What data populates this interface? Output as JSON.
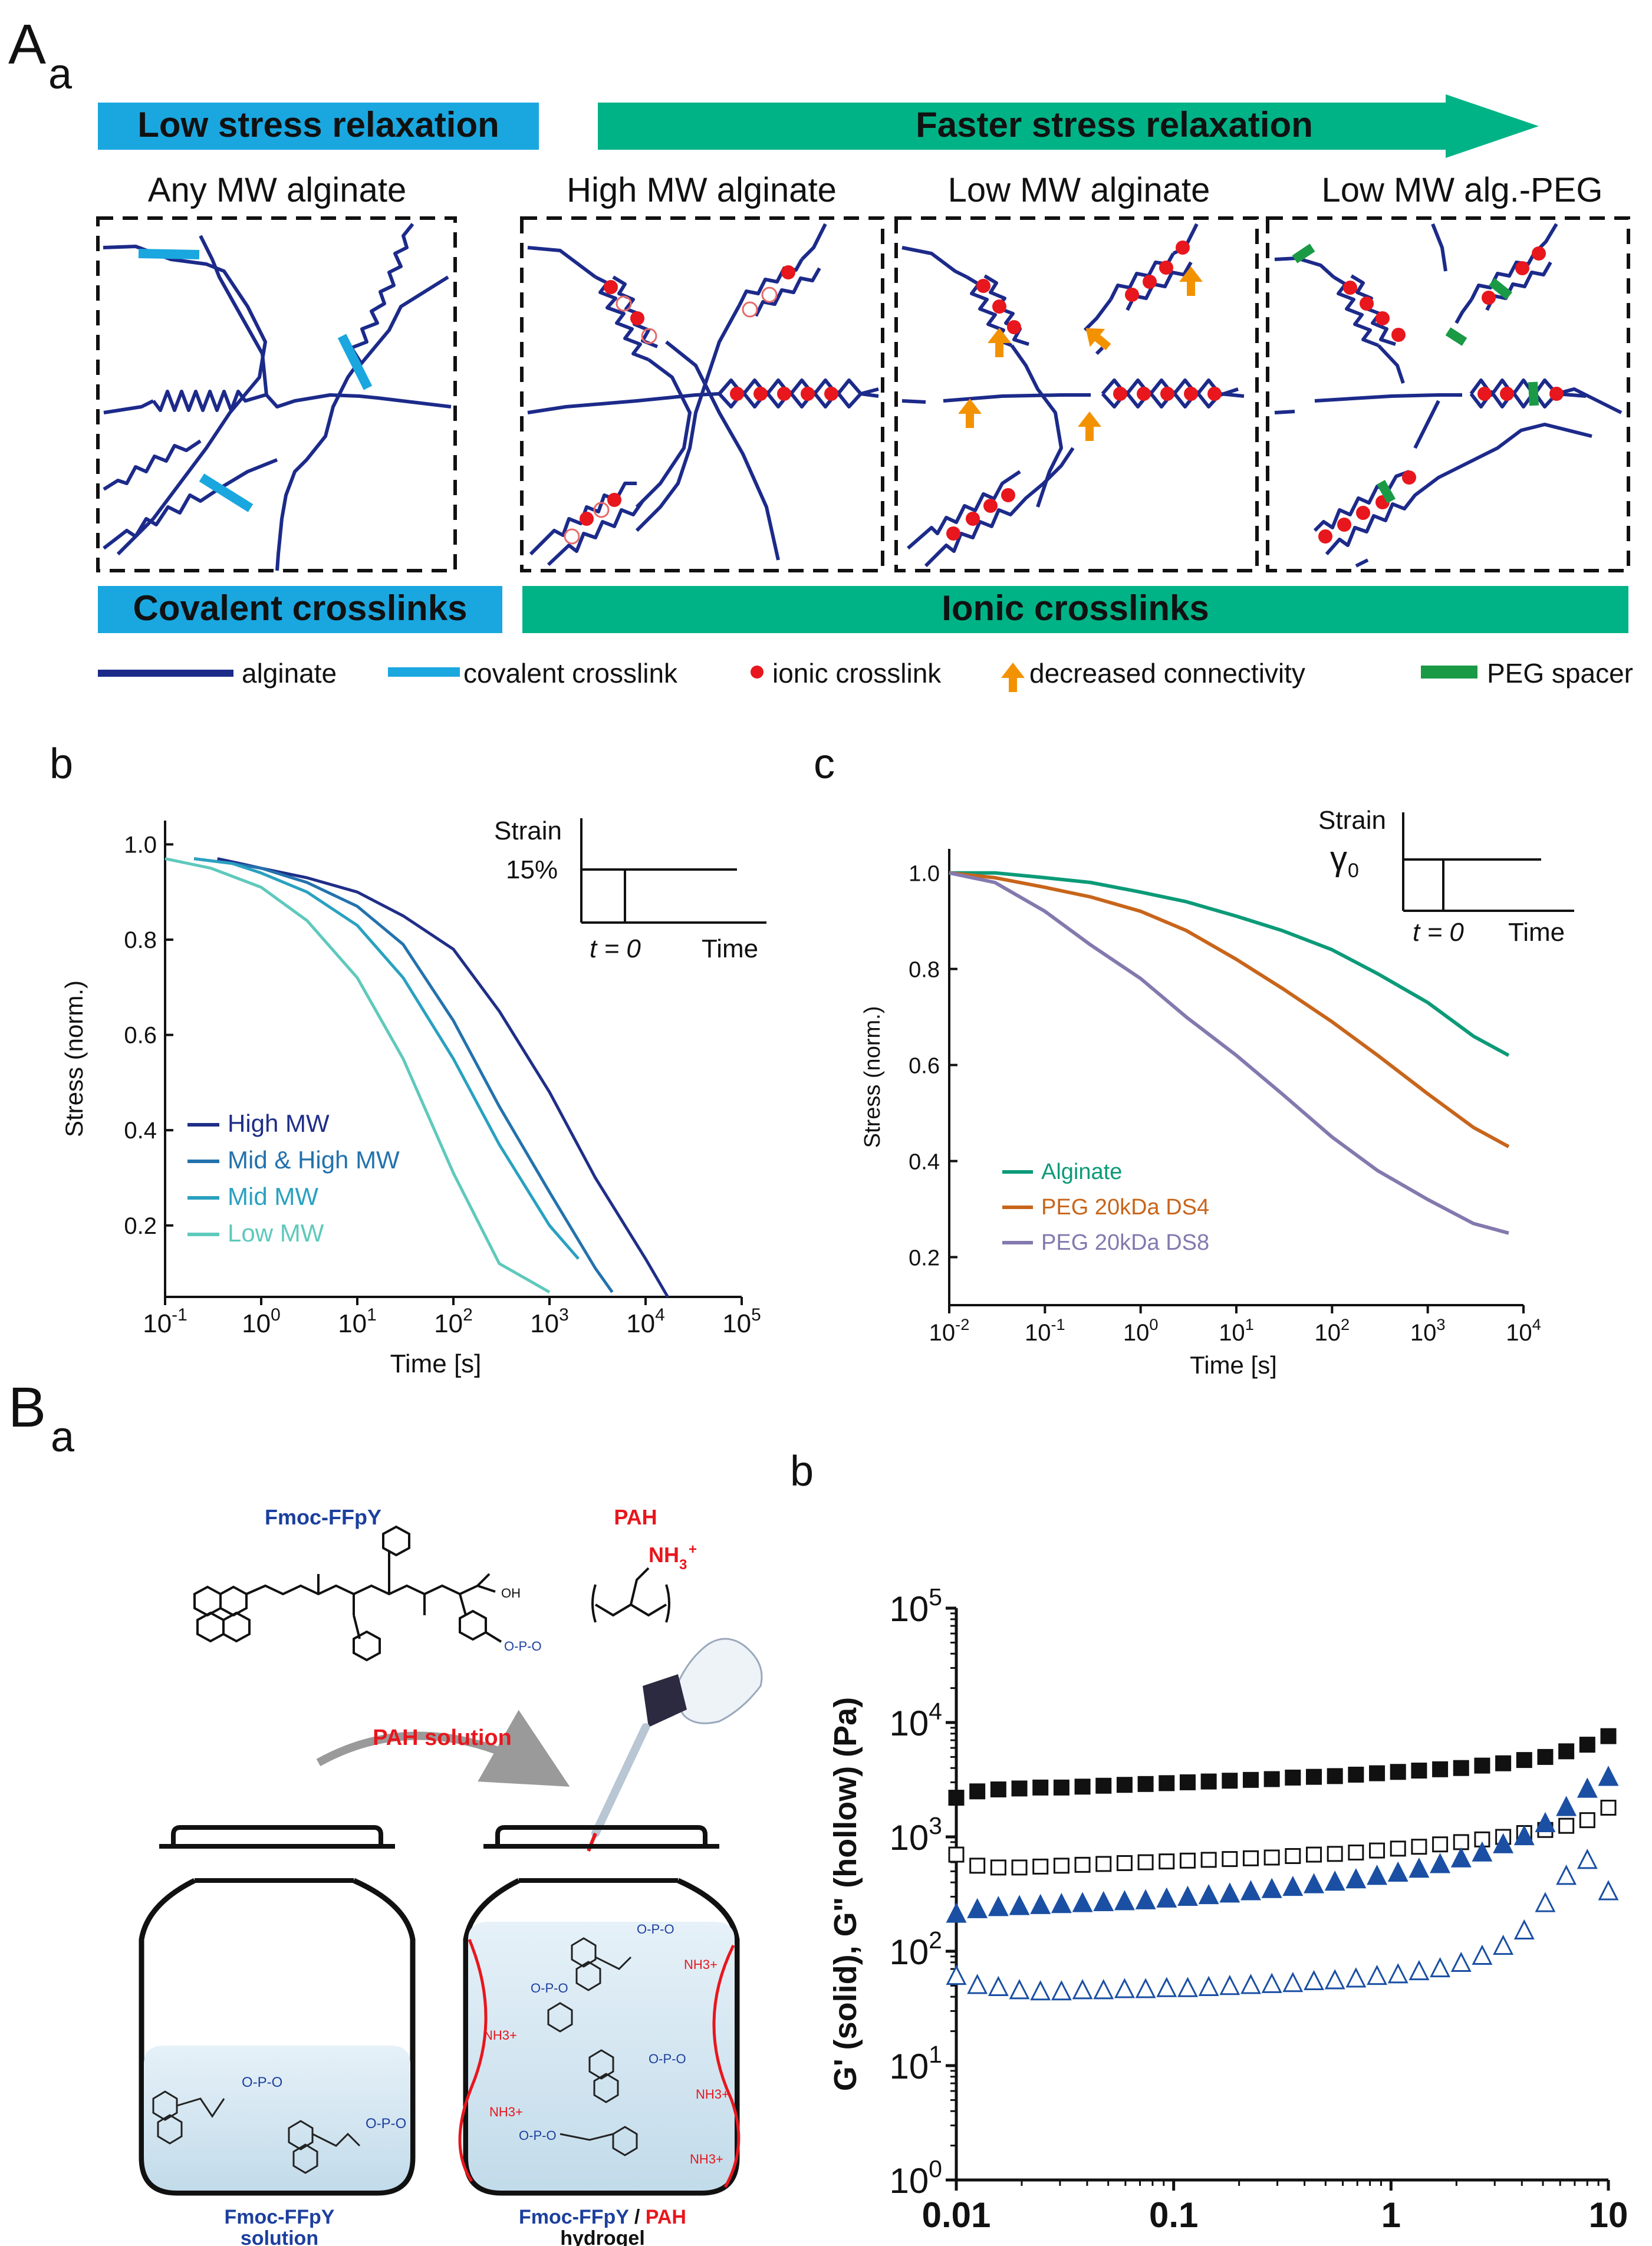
{
  "panelA": {
    "label": "A",
    "sublabel": "a",
    "banner_low": "Low stress relaxation",
    "banner_fast": "Faster stress relaxation",
    "banner_covalent": "Covalent crosslinks",
    "banner_ionic": "Ionic crosslinks",
    "box_titles": [
      "Any MW alginate",
      "High MW alginate",
      "Low MW alginate",
      "Low MW alg.-PEG"
    ],
    "legend": {
      "alginate": "alginate",
      "covalent": "covalent crosslink",
      "ionic": "ionic crosslink",
      "decreased": "decreased connectivity",
      "peg": "PEG spacer"
    },
    "colors": {
      "cyan": "#1aa7e0",
      "green": "#00b386",
      "navy": "#1c2a8a",
      "red": "#e8161d",
      "orange": "#f39200",
      "peg": "#1a9a45"
    }
  },
  "panelAb": {
    "label": "b",
    "inset": {
      "strain": "Strain",
      "value": "15%",
      "t0": "t = 0",
      "time": "Time"
    }
  },
  "panelAc": {
    "label": "c",
    "inset": {
      "strain": "Strain",
      "gamma": "γ",
      "gamma_sub": "0",
      "t0": "t = 0",
      "time": "Time"
    }
  },
  "panelB": {
    "label": "B",
    "sublabel": "a",
    "label_b": "b",
    "molecule1": "Fmoc-FFpY",
    "molecule2": "PAH",
    "amine": "NH",
    "amine_sub": "3",
    "amine_sup": "+",
    "arrow_label": "PAH solution",
    "jar1_line1": "Fmoc-FFpY",
    "jar1_line2": "solution",
    "jar2_part1": "Fmoc-FFpY",
    "jar2_sep": " / ",
    "jar2_part2": "PAH",
    "jar2_line2": "hydrogel"
  },
  "chart_data": [
    {
      "type": "line",
      "id": "stress-relaxation-mw",
      "xlabel": "Time [s]",
      "ylabel": "Stress (norm.)",
      "xscale": "log",
      "xlim": [
        0.1,
        100000
      ],
      "ylim": [
        0.05,
        1.05
      ],
      "xticks": [
        {
          "b": "10",
          "e": "-1"
        },
        {
          "b": "10",
          "e": "0"
        },
        {
          "b": "10",
          "e": "1"
        },
        {
          "b": "10",
          "e": "2"
        },
        {
          "b": "10",
          "e": "3"
        },
        {
          "b": "10",
          "e": "4"
        },
        {
          "b": "10",
          "e": "5"
        }
      ],
      "yticks": [
        "0.2",
        "0.4",
        "0.6",
        "0.8",
        "1.0"
      ],
      "legend_position": "bottom-left",
      "series": [
        {
          "name": "High MW",
          "color": "#1f2e87",
          "x": [
            0.35,
            0.6,
            1,
            3,
            10,
            30,
            100,
            300,
            1000,
            3000,
            10000,
            17000
          ],
          "y": [
            0.97,
            0.96,
            0.95,
            0.93,
            0.9,
            0.85,
            0.78,
            0.65,
            0.48,
            0.3,
            0.13,
            0.05
          ]
        },
        {
          "name": "Mid & High MW",
          "color": "#2372ad",
          "x": [
            0.2,
            0.5,
            1,
            3,
            10,
            30,
            100,
            300,
            1000,
            3000,
            4500
          ],
          "y": [
            0.97,
            0.96,
            0.95,
            0.92,
            0.87,
            0.79,
            0.63,
            0.45,
            0.27,
            0.11,
            0.06
          ]
        },
        {
          "name": "Mid MW",
          "color": "#2aa1c0",
          "x": [
            0.2,
            0.5,
            1,
            3,
            10,
            30,
            100,
            300,
            1000,
            2000
          ],
          "y": [
            0.97,
            0.96,
            0.94,
            0.9,
            0.83,
            0.72,
            0.55,
            0.37,
            0.2,
            0.13
          ]
        },
        {
          "name": "Low MW",
          "color": "#5ec9bc",
          "x": [
            0.1,
            0.3,
            1,
            3,
            10,
            30,
            100,
            300,
            1000
          ],
          "y": [
            0.97,
            0.95,
            0.91,
            0.84,
            0.72,
            0.55,
            0.31,
            0.12,
            0.06
          ]
        }
      ]
    },
    {
      "type": "line",
      "id": "stress-relaxation-peg",
      "xlabel": "Time [s]",
      "ylabel": "Stress (norm.)",
      "xscale": "log",
      "xlim": [
        0.01,
        10000
      ],
      "ylim": [
        0.1,
        1.05
      ],
      "xticks": [
        {
          "b": "10",
          "e": "-2"
        },
        {
          "b": "10",
          "e": "-1"
        },
        {
          "b": "10",
          "e": "0"
        },
        {
          "b": "10",
          "e": "1"
        },
        {
          "b": "10",
          "e": "2"
        },
        {
          "b": "10",
          "e": "3"
        },
        {
          "b": "10",
          "e": "4"
        }
      ],
      "yticks": [
        "0.2",
        "0.4",
        "0.6",
        "0.8",
        "1.0"
      ],
      "legend_position": "bottom-left",
      "series": [
        {
          "name": "Alginate",
          "color": "#0c9a78",
          "x": [
            0.01,
            0.03,
            0.1,
            0.3,
            1,
            3,
            10,
            30,
            100,
            300,
            1000,
            3000,
            7000
          ],
          "y": [
            1.0,
            1.0,
            0.99,
            0.98,
            0.96,
            0.94,
            0.91,
            0.88,
            0.84,
            0.79,
            0.73,
            0.66,
            0.62
          ]
        },
        {
          "name": "PEG 20kDa DS4",
          "color": "#c8651b",
          "x": [
            0.01,
            0.03,
            0.1,
            0.3,
            1,
            3,
            10,
            30,
            100,
            300,
            1000,
            3000,
            7000
          ],
          "y": [
            1.0,
            0.99,
            0.97,
            0.95,
            0.92,
            0.88,
            0.82,
            0.76,
            0.69,
            0.62,
            0.54,
            0.47,
            0.43
          ]
        },
        {
          "name": "PEG 20kDa DS8",
          "color": "#8479ae",
          "x": [
            0.01,
            0.03,
            0.1,
            0.3,
            1,
            3,
            10,
            30,
            100,
            300,
            1000,
            3000,
            7000
          ],
          "y": [
            1.0,
            0.98,
            0.92,
            0.85,
            0.78,
            0.7,
            0.62,
            0.54,
            0.45,
            0.38,
            0.32,
            0.27,
            0.25
          ]
        }
      ]
    },
    {
      "type": "scatter",
      "id": "moduli-frequency",
      "ylabel": "G' (solid), G\" (hollow) (Pa)",
      "xscale": "log",
      "yscale": "log",
      "xlim": [
        0.01,
        10
      ],
      "ylim": [
        1,
        100000
      ],
      "xticks": [
        "0.01",
        "0.1",
        "1",
        "10"
      ],
      "yticks": [
        {
          "b": "10",
          "e": "0"
        },
        {
          "b": "10",
          "e": "1"
        },
        {
          "b": "10",
          "e": "2"
        },
        {
          "b": "10",
          "e": "3"
        },
        {
          "b": "10",
          "e": "4"
        },
        {
          "b": "10",
          "e": "5"
        }
      ],
      "series": [
        {
          "name": "G' square",
          "marker": "square",
          "filled": true,
          "color": "#111111",
          "x_range": [
            0.01,
            10
          ],
          "y": [
            2200,
            2500,
            2600,
            2650,
            2700,
            2700,
            2750,
            2800,
            2850,
            2900,
            2950,
            3000,
            3050,
            3100,
            3150,
            3200,
            3300,
            3350,
            3400,
            3500,
            3600,
            3700,
            3800,
            3900,
            4000,
            4200,
            4400,
            4700,
            5000,
            5600,
            6400,
            7600
          ]
        },
        {
          "name": "G'' square",
          "marker": "square",
          "filled": false,
          "color": "#111111",
          "x_range": [
            0.01,
            10
          ],
          "y": [
            700,
            560,
            540,
            540,
            550,
            560,
            570,
            580,
            590,
            600,
            610,
            620,
            630,
            640,
            650,
            660,
            680,
            700,
            710,
            730,
            760,
            790,
            820,
            860,
            900,
            950,
            1000,
            1080,
            1150,
            1250,
            1400,
            1800
          ]
        },
        {
          "name": "G' triangle",
          "marker": "triangle",
          "filled": true,
          "color": "#1a4fa3",
          "x_range": [
            0.01,
            10
          ],
          "y": [
            210,
            230,
            240,
            245,
            250,
            255,
            260,
            265,
            270,
            275,
            285,
            295,
            305,
            315,
            330,
            345,
            360,
            380,
            400,
            420,
            450,
            480,
            520,
            570,
            640,
            720,
            850,
            1000,
            1300,
            1800,
            2600,
            3300
          ]
        },
        {
          "name": "G'' triangle",
          "marker": "triangle",
          "filled": false,
          "color": "#1a4fa3",
          "x_range": [
            0.01,
            10
          ],
          "y": [
            60,
            50,
            48,
            45,
            44,
            44,
            45,
            45,
            46,
            46,
            47,
            47,
            48,
            49,
            50,
            51,
            52,
            54,
            55,
            57,
            60,
            62,
            66,
            70,
            78,
            90,
            110,
            150,
            260,
            450,
            620,
            330
          ]
        }
      ]
    }
  ]
}
